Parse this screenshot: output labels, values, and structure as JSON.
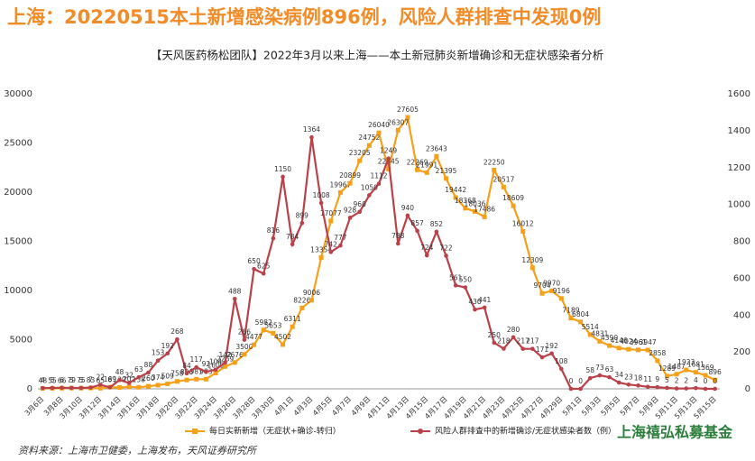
{
  "chart_data": {
    "type": "line",
    "title": "上海：20220515本土新增感染病例896例，风险人群排查中发现0例",
    "subtitle": "【天风医药杨松团队】2022年3月以来上海——本土新冠肺炎新增确诊和无症状感染者分析",
    "source": "资料来源：上海市卫健委，上海发布，天风证券研究所",
    "watermark": "上海禧弘私募基金",
    "categories": [
      "3月6日",
      null,
      "3月8日",
      null,
      "3月10日",
      null,
      "3月12日",
      null,
      "3月14日",
      null,
      "3月16日",
      null,
      "3月18日",
      null,
      "3月20日",
      null,
      "3月22日",
      null,
      "3月24日",
      null,
      "3月26日",
      null,
      "3月28日",
      null,
      "3月30日",
      null,
      "4月1日",
      null,
      "4月3日",
      null,
      "4月5日",
      null,
      "4月7日",
      null,
      "4月9日",
      null,
      "4月11日",
      null,
      "4月13日",
      null,
      "4月15日",
      null,
      "4月17日",
      null,
      "4月19日",
      null,
      "4月21日",
      null,
      "4月23日",
      null,
      "4月25日",
      null,
      "4月27日",
      null,
      "4月29日",
      null,
      "5月1日",
      null,
      "5月3日",
      null,
      "5月5日",
      null,
      "5月7日",
      null,
      "5月9日",
      null,
      "5月11日",
      null,
      "5月13日",
      null,
      "5月15日"
    ],
    "series": [
      {
        "name": "每日实新新增（无症状+确诊-转归）",
        "color": "#f5a01a",
        "marker": "square",
        "values": [
          48,
          55,
          66,
          79,
          75,
          83,
          65,
          169,
          139,
          202,
          158,
          260,
          374,
          509,
          758,
          896,
          981,
          983,
          1609,
          2269,
          2676,
          3500,
          4477,
          5982,
          5653,
          4502,
          6311,
          8226,
          9006,
          13354,
          17077,
          19967,
          20899,
          23205,
          24752,
          26040,
          22345,
          26307,
          27605,
          22269,
          21991,
          23643,
          21395,
          19442,
          18368,
          18036,
          17486,
          22250,
          20517,
          18609,
          16012,
          12309,
          9704,
          9970,
          9196,
          7189,
          6804,
          5514,
          4831,
          4390,
          4146,
          4024,
          3961,
          3947,
          2858,
          1289,
          1487,
          1923,
          1681,
          1369,
          896
        ]
      },
      {
        "name": "风险人群排查中的新增确诊/无症状感染者数（例）",
        "color": "#b9414a",
        "marker": "circle",
        "axis": "y2",
        "values": [
          4,
          5,
          6,
          5,
          5,
          7,
          22,
          8,
          48,
          32,
          63,
          88,
          153,
          192,
          268,
          84,
          117,
          92,
          104,
          142,
          488,
          266,
          650,
          625,
          816,
          1150,
          784,
          899,
          1364,
          1008,
          742,
          777,
          928,
          960,
          1050,
          1112,
          1249,
          788,
          940,
          857,
          724,
          852,
          722,
          561,
          550,
          430,
          441,
          250,
          218,
          280,
          217,
          217,
          171,
          192,
          108,
          0,
          0,
          58,
          73,
          63,
          34,
          23,
          18,
          11,
          9,
          5,
          2,
          2,
          4,
          0,
          0
        ]
      }
    ],
    "ylim": [
      0,
      30000
    ],
    "yticks": [
      0,
      5000,
      10000,
      15000,
      20000,
      25000,
      30000
    ],
    "y2lim": [
      0,
      1600
    ],
    "y2ticks": [
      0,
      200,
      400,
      600,
      800,
      1000,
      1200,
      1400,
      1600
    ],
    "grid": false,
    "legend": "bottom"
  }
}
